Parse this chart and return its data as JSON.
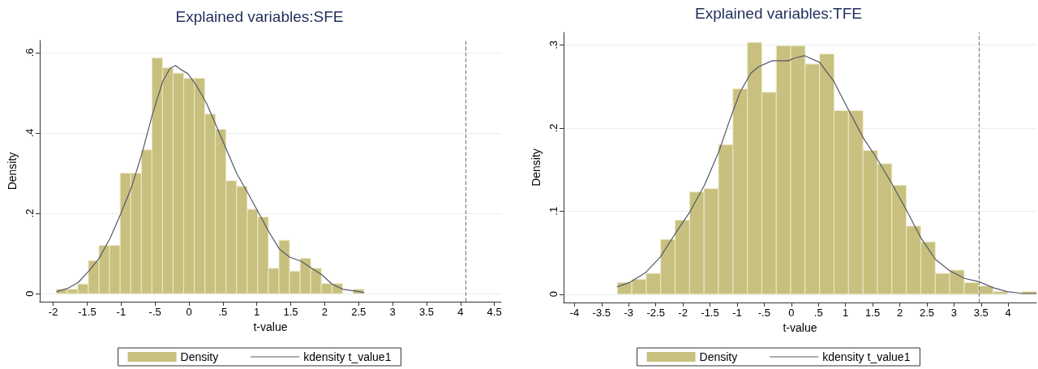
{
  "chart_data": [
    {
      "type": "histogram",
      "title": "Explained variables:SFE",
      "xlabel": "t-value",
      "ylabel": "Density",
      "xlim": [
        -2.2,
        4.6
      ],
      "xticks": [
        -2,
        {
          "value": -1.5,
          "label": "-1.5"
        },
        -1,
        {
          "value": -0.5,
          "label": "-.5"
        },
        0,
        {
          "value": 0.5,
          "label": ".5"
        },
        1,
        1.5,
        2,
        2.5,
        3,
        3.5,
        4,
        4.5
      ],
      "ylim": [
        -0.02,
        0.63
      ],
      "yticks": [
        0,
        {
          "value": 0.2,
          "label": ".2"
        },
        {
          "value": 0.4,
          "label": ".4"
        },
        {
          "value": 0.6,
          "label": ".6"
        }
      ],
      "grid": "y",
      "legend": "bottom",
      "marker": "none",
      "line_style": "solid",
      "ref_lines": [
        {
          "axis": "x",
          "value": 4.08,
          "color": "#808080",
          "line_style": "dashed"
        }
      ],
      "series": [
        {
          "name": "Density",
          "type": "histogram",
          "color": "#c8c07e",
          "bins": [
            -1.95,
            -1.794,
            -1.638,
            -1.482,
            -1.326,
            -1.17,
            -1.014,
            -0.858,
            -0.702,
            -0.546,
            -0.39,
            -0.234,
            -0.078,
            0.078,
            0.234,
            0.39,
            0.546,
            0.702,
            0.858,
            1.014,
            1.17,
            1.326,
            1.482,
            1.638,
            1.794,
            1.95,
            2.106,
            2.262,
            2.418,
            2.574
          ],
          "values": [
            0.011,
            0.011,
            0.024,
            0.082,
            0.12,
            0.12,
            0.3,
            0.3,
            0.358,
            0.587,
            0.562,
            0.549,
            0.536,
            0.536,
            0.447,
            0.409,
            0.281,
            0.267,
            0.21,
            0.191,
            0.063,
            0.133,
            0.056,
            0.088,
            0.063,
            0.025,
            0.025,
            0,
            0.011
          ]
        },
        {
          "name": "kdensity t_value1",
          "type": "line",
          "color": "#55566a",
          "x": [
            -1.95,
            -1.79,
            -1.631,
            -1.472,
            -1.321,
            -1.162,
            -1.007,
            -0.847,
            -0.697,
            -0.537,
            -0.387,
            -0.279,
            -0.199,
            -0.119,
            -0.02,
            0.099,
            0.258,
            0.389,
            0.549,
            0.704,
            0.863,
            1.014,
            1.173,
            1.332,
            1.483,
            1.65,
            1.802,
            1.957,
            2.107,
            2.267,
            2.426,
            2.578
          ],
          "values": [
            0.005,
            0.013,
            0.028,
            0.057,
            0.089,
            0.138,
            0.198,
            0.265,
            0.346,
            0.447,
            0.528,
            0.561,
            0.568,
            0.558,
            0.548,
            0.521,
            0.474,
            0.423,
            0.36,
            0.299,
            0.252,
            0.205,
            0.155,
            0.111,
            0.091,
            0.081,
            0.064,
            0.047,
            0.024,
            0.011,
            0.007,
            0.003
          ]
        }
      ]
    },
    {
      "type": "histogram",
      "title": "Explained variables:TFE",
      "xlabel": "t-value",
      "ylabel": "Density",
      "xlim": [
        -4.2,
        4.52
      ],
      "xticks": [
        -4,
        {
          "value": -3.5,
          "label": "-3.5"
        },
        -3,
        {
          "value": -2.5,
          "label": "-2.5"
        },
        -2,
        {
          "value": -1.5,
          "label": "-1.5"
        },
        -1,
        {
          "value": -0.5,
          "label": "-.5"
        },
        0,
        {
          "value": 0.5,
          "label": ".5"
        },
        1,
        1.5,
        2,
        2.5,
        3,
        3.5,
        4
      ],
      "ylim": [
        -0.01,
        0.315
      ],
      "yticks": [
        0,
        {
          "value": 0.1,
          "label": ".1"
        },
        {
          "value": 0.2,
          "label": ".2"
        },
        {
          "value": 0.3,
          "label": ".3"
        }
      ],
      "grid": "y",
      "legend": "bottom",
      "marker": "none",
      "line_style": "solid",
      "ref_lines": [
        {
          "axis": "x",
          "value": 3.46,
          "color": "#808080",
          "line_style": "dashed"
        }
      ],
      "series": [
        {
          "name": "Density",
          "type": "histogram",
          "color": "#c8c07e",
          "bins": [
            -3.209,
            -2.942,
            -2.676,
            -2.409,
            -2.143,
            -1.876,
            -1.61,
            -1.343,
            -1.077,
            -0.81,
            -0.544,
            -0.277,
            -0.011,
            0.256,
            0.522,
            0.789,
            1.055,
            1.322,
            1.588,
            1.855,
            2.121,
            2.388,
            2.655,
            2.921,
            3.188,
            3.454,
            3.721,
            3.987,
            4.254,
            4.52
          ],
          "values": [
            0.014,
            0.018,
            0.025,
            0.066,
            0.089,
            0.123,
            0.127,
            0.18,
            0.247,
            0.303,
            0.243,
            0.299,
            0.299,
            0.277,
            0.289,
            0.221,
            0.221,
            0.173,
            0.157,
            0.131,
            0.082,
            0.063,
            0.025,
            0.029,
            0.014,
            0.01,
            0.003,
            0,
            0.003
          ]
        },
        {
          "name": "kdensity t_value1",
          "type": "line",
          "color": "#55566a",
          "x": [
            -3.209,
            -2.985,
            -2.687,
            -2.413,
            -2.14,
            -1.872,
            -1.603,
            -1.334,
            -1.145,
            -0.946,
            -0.746,
            -0.597,
            -0.349,
            -0.051,
            0.049,
            0.248,
            0.522,
            0.785,
            1.06,
            1.328,
            1.591,
            1.855,
            2.124,
            2.388,
            2.657,
            2.925,
            3.194,
            3.463,
            3.716,
            3.979,
            4.254,
            4.518
          ],
          "values": [
            0.009,
            0.014,
            0.026,
            0.045,
            0.073,
            0.099,
            0.131,
            0.172,
            0.208,
            0.243,
            0.266,
            0.274,
            0.281,
            0.281,
            0.284,
            0.287,
            0.279,
            0.256,
            0.221,
            0.188,
            0.162,
            0.133,
            0.101,
            0.068,
            0.042,
            0.028,
            0.019,
            0.015,
            0.008,
            0.003,
            0.001,
            0.001
          ]
        }
      ]
    }
  ]
}
